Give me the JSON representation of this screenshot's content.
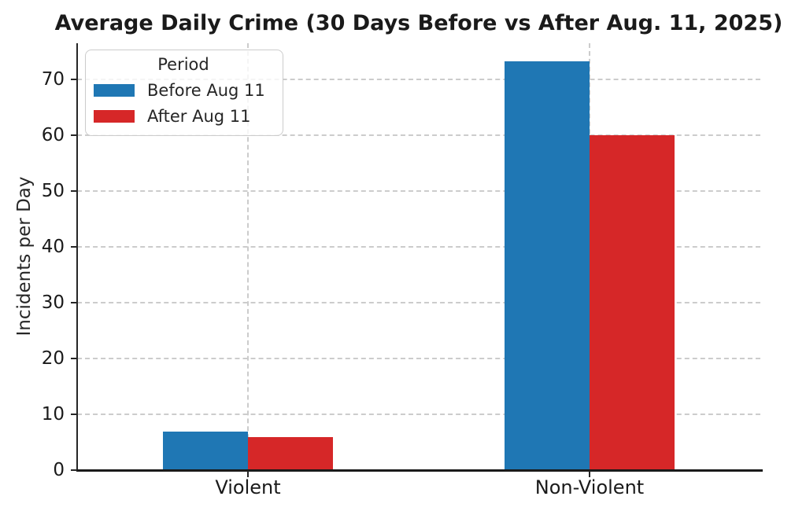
{
  "chart_data": {
    "type": "bar",
    "title": "Average Daily Crime (30 Days Before vs After Aug. 11, 2025)",
    "ylabel": "Incidents per Day",
    "xlabel": "",
    "categories": [
      "Violent",
      "Non-Violent"
    ],
    "series": [
      {
        "name": "Before Aug 11",
        "color": "#1f77b4",
        "values": [
          6.9,
          73.3
        ]
      },
      {
        "name": "After Aug 11",
        "color": "#d62728",
        "values": [
          5.9,
          60.0
        ]
      }
    ],
    "yticks": [
      0,
      10,
      20,
      30,
      40,
      50,
      60,
      70
    ],
    "ylim": [
      0,
      76.5
    ],
    "grid": true,
    "legend_title": "Period",
    "legend_position": "upper left"
  }
}
